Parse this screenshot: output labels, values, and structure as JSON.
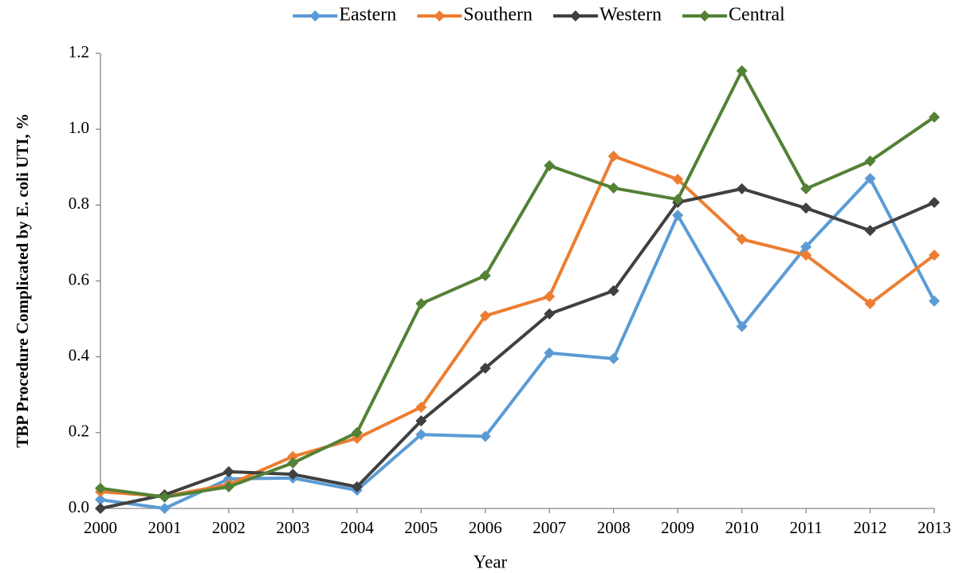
{
  "chart_data": {
    "type": "line",
    "x_label": "Year",
    "y_label": "TBP Procedure Complicated by E. coli UTI, %",
    "x": [
      2000,
      2001,
      2002,
      2003,
      2004,
      2005,
      2006,
      2007,
      2008,
      2009,
      2010,
      2011,
      2012,
      2013
    ],
    "xlim": [
      2000,
      2013
    ],
    "xticks": [
      2000,
      2001,
      2002,
      2003,
      2004,
      2005,
      2006,
      2007,
      2008,
      2009,
      2010,
      2011,
      2012,
      2013
    ],
    "ylim": [
      0,
      1.2
    ],
    "yticks": [
      {
        "value": 0,
        "label": "0.0"
      },
      0.2,
      0.4,
      0.6,
      0.8,
      {
        "value": 1,
        "label": "1.0"
      },
      1.2
    ],
    "grid": false,
    "legend": "top",
    "series": [
      {
        "name": "Eastern",
        "color": "#5b9bd5",
        "values": [
          0.023,
          0.0,
          0.078,
          0.08,
          0.048,
          0.195,
          0.19,
          0.41,
          0.395,
          0.773,
          0.48,
          0.69,
          0.87,
          0.547
        ]
      },
      {
        "name": "Southern",
        "color": "#ed7d31",
        "values": [
          0.044,
          0.032,
          0.063,
          0.137,
          0.185,
          0.267,
          0.508,
          0.559,
          0.929,
          0.868,
          0.71,
          0.668,
          0.54,
          0.668
        ]
      },
      {
        "name": "Western",
        "color": "#404040",
        "values": [
          0.0,
          0.036,
          0.097,
          0.09,
          0.057,
          0.231,
          0.37,
          0.513,
          0.574,
          0.807,
          0.843,
          0.792,
          0.733,
          0.807
        ]
      },
      {
        "name": "Central",
        "color": "#538135",
        "values": [
          0.053,
          0.03,
          0.057,
          0.12,
          0.2,
          0.54,
          0.614,
          0.904,
          0.845,
          0.815,
          1.154,
          0.843,
          0.916,
          1.032
        ]
      }
    ]
  }
}
